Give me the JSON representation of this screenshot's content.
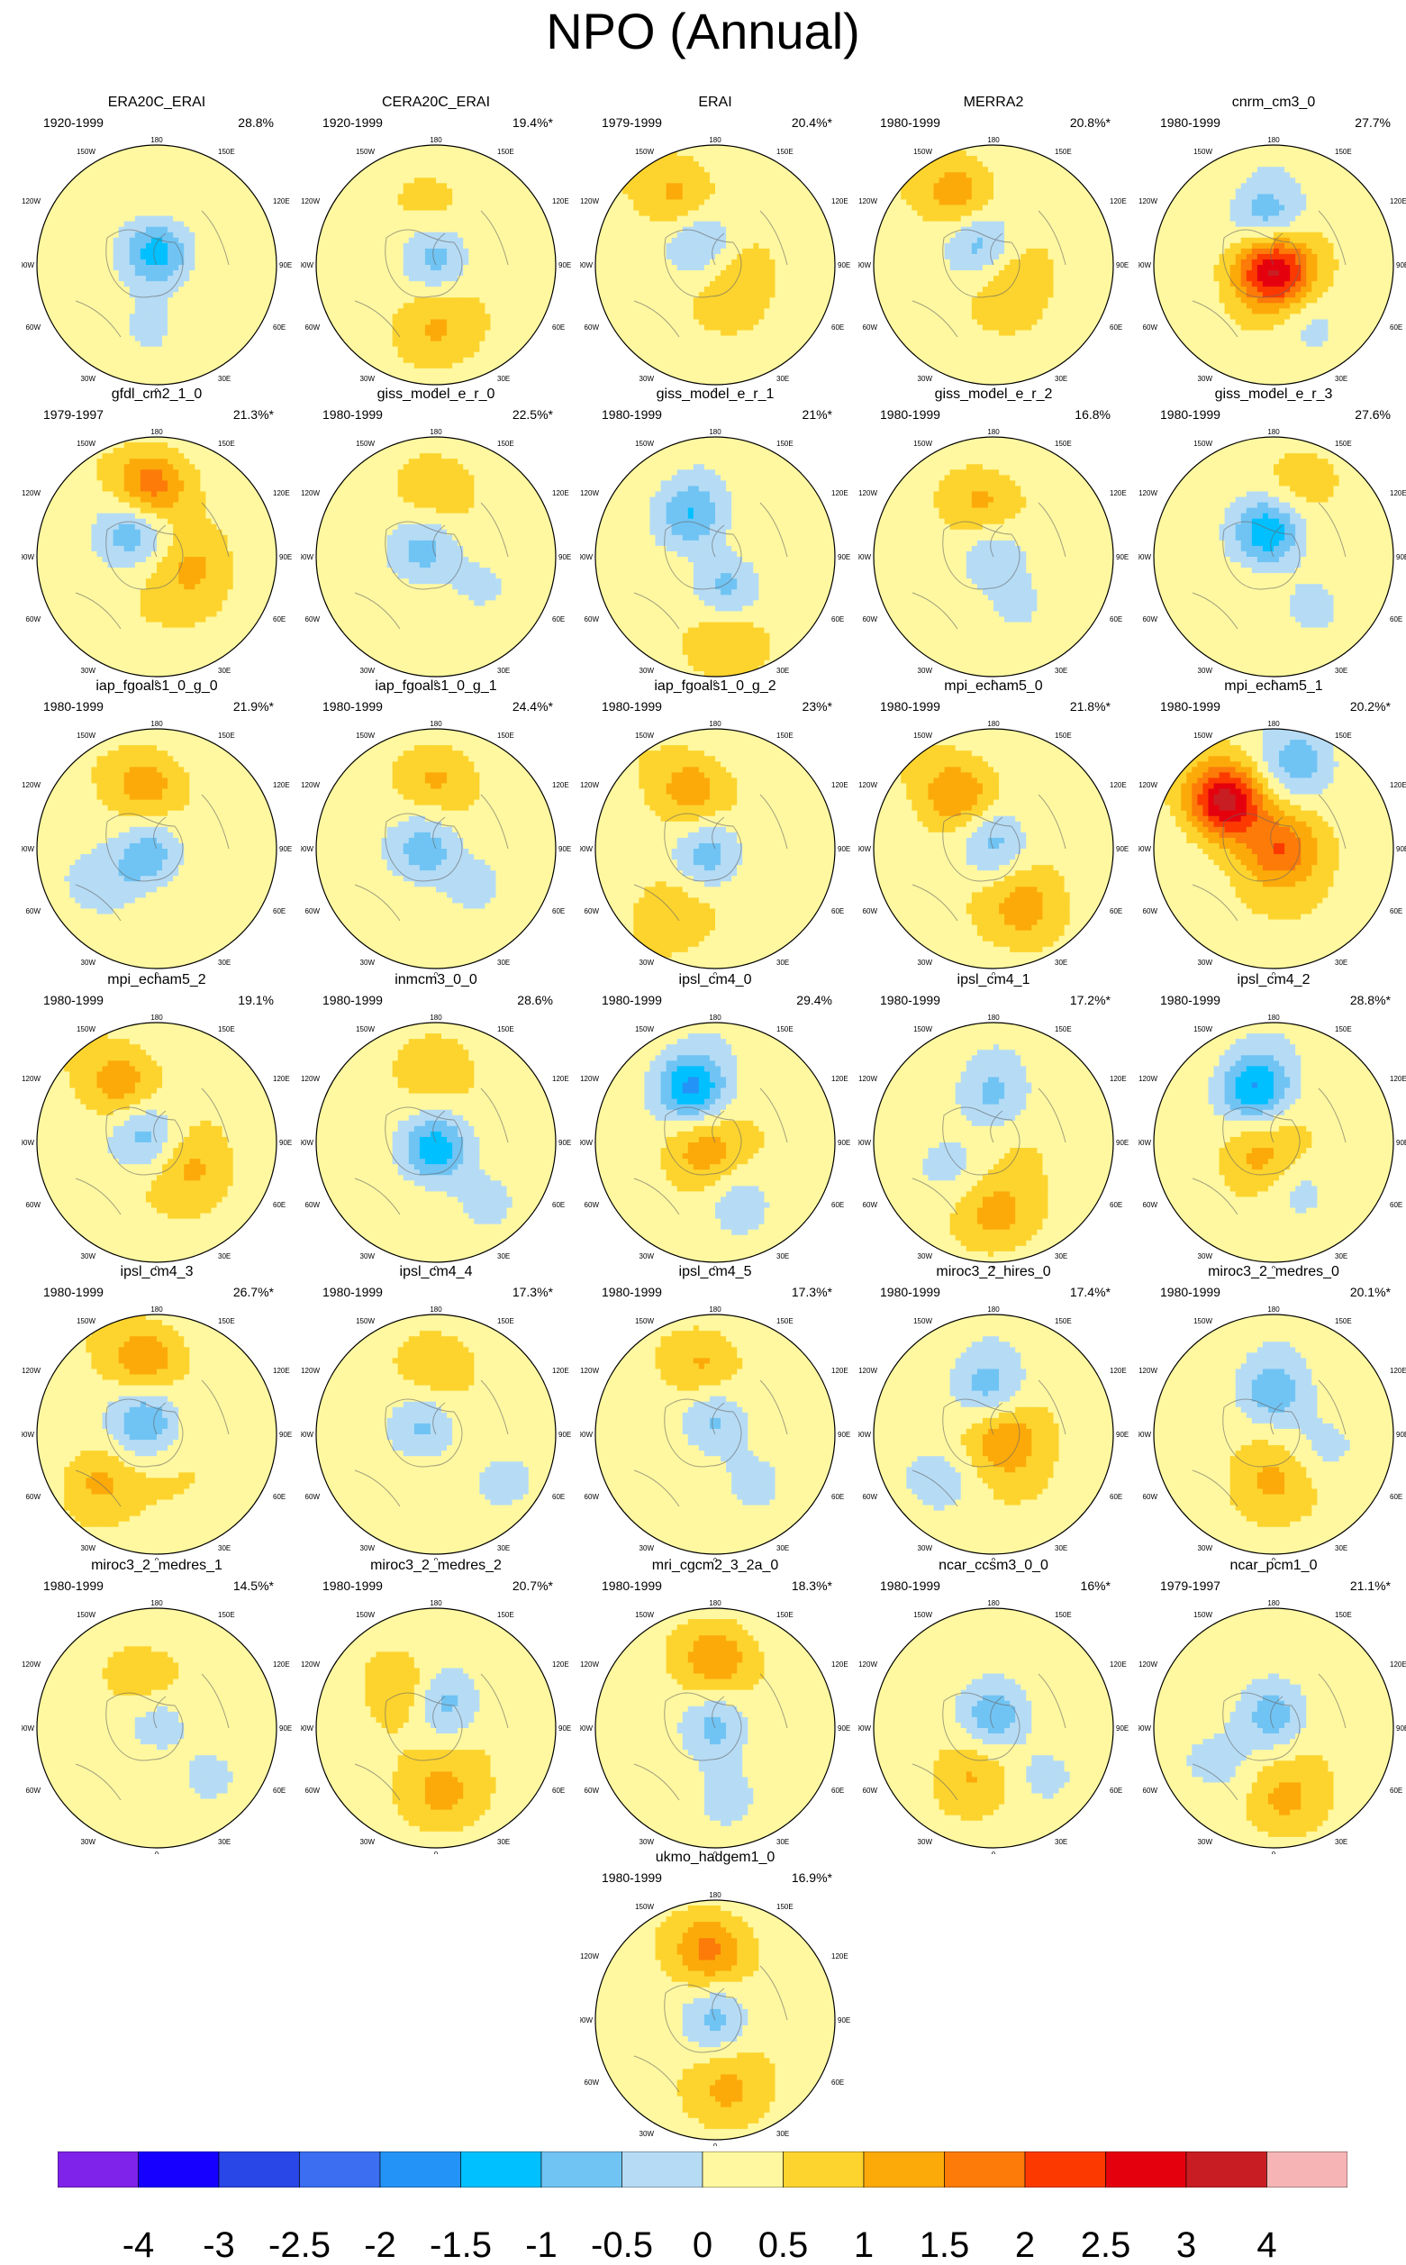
{
  "title": "NPO (Annual)",
  "panels": [
    {
      "name": "ERA20C_ERAI",
      "period": "1920-1999",
      "pct": "28.8%",
      "pattern": [
        [
          0.0,
          -0.1,
          -1.8
        ],
        [
          -0.05,
          0.5,
          -0.6
        ],
        [
          0.05,
          -0.55,
          0.3
        ]
      ]
    },
    {
      "name": "CERA20C_ERAI",
      "period": "1920-1999",
      "pct": "19.4%*",
      "pattern": [
        [
          0.0,
          -0.05,
          -1.2
        ],
        [
          0.0,
          0.55,
          0.6
        ],
        [
          -0.05,
          -0.55,
          0.4
        ]
      ]
    },
    {
      "name": "ERAI",
      "period": "1979-1999",
      "pct": "20.4%*",
      "pattern": [
        [
          -0.3,
          -0.6,
          0.8
        ],
        [
          0.1,
          0.05,
          0.5
        ],
        [
          -0.1,
          -0.15,
          -1.2
        ]
      ]
    },
    {
      "name": "MERRA2",
      "period": "1980-1999",
      "pct": "20.8%*",
      "pattern": [
        [
          -0.3,
          -0.6,
          1.0
        ],
        [
          0.1,
          0.05,
          0.5
        ],
        [
          -0.1,
          -0.15,
          -1.3
        ]
      ]
    },
    {
      "name": "cnrm_cm3_0",
      "period": "1980-1999",
      "pct": "27.7%",
      "pattern": [
        [
          0.0,
          0.05,
          2.6
        ],
        [
          -0.05,
          -0.4,
          -1.2
        ],
        [
          0.3,
          0.5,
          -0.6
        ]
      ]
    },
    {
      "name": "gfdl_cm2_1_0",
      "period": "1979-1997",
      "pct": "21.3%*",
      "pattern": [
        [
          -0.05,
          -0.6,
          1.6
        ],
        [
          -0.2,
          -0.2,
          -1.3
        ],
        [
          0.3,
          0.1,
          0.6
        ]
      ]
    },
    {
      "name": "giss_model_e_r_0",
      "period": "1980-1999",
      "pct": "22.5%*",
      "pattern": [
        [
          0.0,
          -0.6,
          0.7
        ],
        [
          -0.1,
          -0.05,
          -1.2
        ],
        [
          0.35,
          0.25,
          -0.6
        ]
      ]
    },
    {
      "name": "giss_model_e_r_1",
      "period": "1980-1999",
      "pct": "21%*",
      "pattern": [
        [
          -0.2,
          -0.35,
          -1.4
        ],
        [
          0.1,
          0.25,
          -1.2
        ],
        [
          0.1,
          0.75,
          0.7
        ]
      ]
    },
    {
      "name": "giss_model_e_r_2",
      "period": "1980-1999",
      "pct": "16.8%",
      "pattern": [
        [
          -0.1,
          -0.45,
          0.8
        ],
        [
          0.0,
          0.0,
          -1.0
        ],
        [
          0.2,
          0.4,
          -0.6
        ]
      ]
    },
    {
      "name": "giss_model_e_r_3",
      "period": "1980-1999",
      "pct": "27.6%",
      "pattern": [
        [
          -0.05,
          -0.2,
          -1.9
        ],
        [
          0.2,
          -0.65,
          0.6
        ],
        [
          0.3,
          0.4,
          -0.7
        ]
      ]
    },
    {
      "name": "iap_fgoals1_0_g_0",
      "period": "1980-1999",
      "pct": "21.9%*",
      "pattern": [
        [
          -0.1,
          -0.55,
          1.0
        ],
        [
          -0.05,
          0.05,
          -1.3
        ],
        [
          -0.4,
          0.3,
          -0.6
        ]
      ]
    },
    {
      "name": "iap_fgoals1_0_g_1",
      "period": "1980-1999",
      "pct": "24.4%*",
      "pattern": [
        [
          0.0,
          -0.6,
          0.8
        ],
        [
          -0.1,
          0.0,
          -1.3
        ],
        [
          0.3,
          0.3,
          -0.7
        ]
      ]
    },
    {
      "name": "iap_fgoals1_0_g_2",
      "period": "1980-1999",
      "pct": "23%*",
      "pattern": [
        [
          -0.2,
          -0.5,
          1.0
        ],
        [
          -0.05,
          0.05,
          -1.3
        ],
        [
          -0.4,
          0.55,
          0.6
        ]
      ]
    },
    {
      "name": "mpi_echam5_0",
      "period": "1980-1999",
      "pct": "21.8%*",
      "pattern": [
        [
          -0.3,
          -0.45,
          1.2
        ],
        [
          0.0,
          -0.05,
          -1.2
        ],
        [
          0.25,
          0.5,
          0.8
        ]
      ]
    },
    {
      "name": "mpi_echam5_1",
      "period": "1980-1999",
      "pct": "20.2%*",
      "pattern": [
        [
          -0.4,
          -0.4,
          2.9
        ],
        [
          0.05,
          0.0,
          1.4
        ],
        [
          0.2,
          -0.7,
          -1.0
        ]
      ]
    },
    {
      "name": "mpi_echam5_2",
      "period": "1980-1999",
      "pct": "19.1%",
      "pattern": [
        [
          -0.3,
          -0.5,
          1.0
        ],
        [
          -0.1,
          -0.05,
          -1.2
        ],
        [
          0.3,
          0.2,
          0.6
        ]
      ]
    },
    {
      "name": "inmcm3_0_0",
      "period": "1980-1999",
      "pct": "28.6%",
      "pattern": [
        [
          0.0,
          0.05,
          -1.9
        ],
        [
          0.0,
          -0.65,
          0.7
        ],
        [
          0.4,
          0.5,
          -0.6
        ]
      ]
    },
    {
      "name": "ipsl_cm4_0",
      "period": "1980-1999",
      "pct": "29.4%",
      "pattern": [
        [
          -0.2,
          -0.45,
          -2.0
        ],
        [
          -0.1,
          0.05,
          0.8
        ],
        [
          0.2,
          0.5,
          -0.8
        ]
      ]
    },
    {
      "name": "ipsl_cm4_1",
      "period": "1980-1999",
      "pct": "17.2%*",
      "pattern": [
        [
          0.0,
          -0.4,
          -1.0
        ],
        [
          0.0,
          0.6,
          0.8
        ],
        [
          -0.3,
          0.2,
          -0.6
        ]
      ]
    },
    {
      "name": "ipsl_cm4_2",
      "period": "1980-1999",
      "pct": "28.8%*",
      "pattern": [
        [
          -0.15,
          -0.45,
          -1.9
        ],
        [
          -0.1,
          0.1,
          0.7
        ],
        [
          0.2,
          0.4,
          -0.7
        ]
      ]
    },
    {
      "name": "ipsl_cm4_3",
      "period": "1980-1999",
      "pct": "26.7%*",
      "pattern": [
        [
          -0.1,
          -0.65,
          1.2
        ],
        [
          -0.1,
          -0.1,
          -1.5
        ],
        [
          -0.5,
          0.4,
          0.8
        ]
      ]
    },
    {
      "name": "ipsl_cm4_4",
      "period": "1980-1999",
      "pct": "17.3%*",
      "pattern": [
        [
          0.0,
          -0.6,
          0.7
        ],
        [
          -0.1,
          -0.05,
          -1.1
        ],
        [
          0.5,
          0.4,
          -0.6
        ]
      ]
    },
    {
      "name": "ipsl_cm4_5",
      "period": "1980-1999",
      "pct": "17.3%*",
      "pattern": [
        [
          -0.1,
          -0.6,
          0.8
        ],
        [
          0.0,
          -0.1,
          -1.1
        ],
        [
          0.3,
          0.4,
          -0.7
        ]
      ]
    },
    {
      "name": "miroc3_2_hires_0",
      "period": "1980-1999",
      "pct": "17.4%*",
      "pattern": [
        [
          -0.05,
          -0.4,
          -1.1
        ],
        [
          0.1,
          0.05,
          0.9
        ],
        [
          -0.4,
          0.4,
          -0.6
        ]
      ]
    },
    {
      "name": "miroc3_2_medres_0",
      "period": "1980-1999",
      "pct": "20.1%*",
      "pattern": [
        [
          0.0,
          -0.35,
          -1.3
        ],
        [
          0.0,
          0.4,
          0.6
        ],
        [
          0.4,
          0.1,
          -0.6
        ]
      ]
    },
    {
      "name": "miroc3_2_medres_1",
      "period": "1980-1999",
      "pct": "14.5%*",
      "pattern": [
        [
          0.0,
          -0.05,
          -0.9
        ],
        [
          -0.1,
          -0.4,
          0.6
        ],
        [
          0.4,
          0.4,
          -0.6
        ]
      ]
    },
    {
      "name": "miroc3_2_medres_2",
      "period": "1980-1999",
      "pct": "20.7%*",
      "pattern": [
        [
          -0.25,
          -0.3,
          0.8
        ],
        [
          0.05,
          -0.2,
          -1.3
        ],
        [
          0.05,
          0.55,
          0.7
        ]
      ]
    },
    {
      "name": "mri_cgcm2_3_2a_0",
      "period": "1980-1999",
      "pct": "18.3%*",
      "pattern": [
        [
          0.0,
          -0.6,
          1.2
        ],
        [
          0.0,
          0.0,
          -1.2
        ],
        [
          0.1,
          0.55,
          -0.7
        ]
      ]
    },
    {
      "name": "ncar_ccsm3_0_0",
      "period": "1980-1999",
      "pct": "16%*",
      "pattern": [
        [
          0.0,
          -0.1,
          -1.4
        ],
        [
          -0.2,
          0.4,
          0.6
        ],
        [
          0.4,
          0.4,
          -0.6
        ]
      ]
    },
    {
      "name": "ncar_pcm1_0",
      "period": "1979-1997",
      "pct": "21.1%*",
      "pattern": [
        [
          0.0,
          -0.1,
          -1.3
        ],
        [
          0.1,
          0.6,
          0.7
        ],
        [
          -0.4,
          0.3,
          -0.5
        ]
      ]
    },
    {
      "name": "ukmo_hadgem1_0",
      "period": "1980-1999",
      "pct": "16.9%*",
      "pattern": [
        [
          -0.05,
          -0.6,
          1.4
        ],
        [
          0.0,
          0.0,
          -1.2
        ],
        [
          0.1,
          0.6,
          0.7
        ]
      ]
    }
  ],
  "map_labels": {
    "top": "180",
    "bottom": "0",
    "left_mid": "90W",
    "right_mid": "90E",
    "ul": "120W",
    "ll": "60W",
    "ur": "120E",
    "lr": "60E",
    "tul": "150W",
    "tur": "150E",
    "bl": "30W",
    "br": "30E"
  },
  "colorbar": {
    "colors": [
      "#7f22ea",
      "#1600ff",
      "#2946e6",
      "#3b6ef0",
      "#2393f7",
      "#00c0ff",
      "#70c4f4",
      "#b6dcf5",
      "#fff8a0",
      "#fdd42e",
      "#fcaa0a",
      "#fd7b08",
      "#fc3a00",
      "#e5000e",
      "#c81e23",
      "#f6b4b5"
    ],
    "labels": [
      "-4",
      "-3",
      "-2.5",
      "-2",
      "-1.5",
      "-1",
      "-0.5",
      "0",
      "0.5",
      "1",
      "1.5",
      "2",
      "2.5",
      "3",
      "4"
    ],
    "levels": [
      -4,
      -3,
      -2.5,
      -2,
      -1.5,
      -1,
      -0.5,
      0,
      0.5,
      1,
      1.5,
      2,
      2.5,
      3,
      4
    ]
  }
}
